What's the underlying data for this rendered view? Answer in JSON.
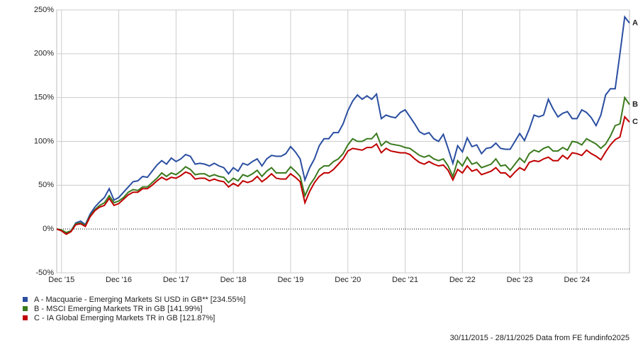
{
  "chart_data": {
    "type": "line",
    "categories": [
      null,
      "Dec '15",
      null,
      null,
      null,
      null,
      null,
      null,
      null,
      null,
      null,
      null,
      null,
      "Dec '16",
      null,
      null,
      null,
      null,
      null,
      null,
      null,
      null,
      null,
      null,
      null,
      "Dec '17",
      null,
      null,
      null,
      null,
      null,
      null,
      null,
      null,
      null,
      null,
      null,
      "Dec '18",
      null,
      null,
      null,
      null,
      null,
      null,
      null,
      null,
      null,
      null,
      null,
      "Dec '19",
      null,
      null,
      null,
      null,
      null,
      null,
      null,
      null,
      null,
      null,
      null,
      "Dec '20",
      null,
      null,
      null,
      null,
      null,
      null,
      null,
      null,
      null,
      null,
      null,
      "Dec '21",
      null,
      null,
      null,
      null,
      null,
      null,
      null,
      null,
      null,
      null,
      null,
      "Dec '22",
      null,
      null,
      null,
      null,
      null,
      null,
      null,
      null,
      null,
      null,
      null,
      "Dec '23",
      null,
      null,
      null,
      null,
      null,
      null,
      null,
      null,
      null,
      null,
      null,
      "Dec '24",
      null,
      null,
      null,
      null,
      null,
      null,
      null,
      null,
      null,
      null,
      null
    ],
    "series": [
      {
        "name": "A - Macquarie - Emerging Markets SI USD in GB** [234.55%]",
        "tag": "A",
        "color": "#2a4ea0",
        "values": [
          0,
          -1,
          -5,
          -2,
          7,
          9,
          5,
          17,
          25,
          31,
          36,
          46,
          33,
          36,
          42,
          48,
          54,
          55,
          60,
          59,
          66,
          73,
          78,
          74,
          81,
          77,
          80,
          85,
          83,
          74,
          75,
          74,
          72,
          75,
          72,
          70,
          63,
          70,
          66,
          75,
          73,
          77,
          80,
          72,
          80,
          84,
          83,
          83,
          86,
          94,
          88,
          80,
          56,
          70,
          80,
          95,
          103,
          103,
          110,
          110,
          120,
          135,
          146,
          153,
          148,
          152,
          148,
          154,
          126,
          130,
          128,
          127,
          133,
          136,
          128,
          120,
          111,
          108,
          110,
          103,
          100,
          108,
          92,
          75,
          95,
          88,
          104,
          94,
          96,
          86,
          92,
          93,
          98,
          92,
          91,
          91,
          100,
          109,
          101,
          114,
          130,
          128,
          130,
          148,
          137,
          128,
          132,
          134,
          126,
          126,
          136,
          133,
          127,
          118,
          130,
          153,
          160,
          160,
          200,
          242,
          235
        ]
      },
      {
        "name": "B - MSCI Emerging Markets TR in GB [141.99%]",
        "tag": "B",
        "color": "#3a7a1e",
        "values": [
          0,
          -1,
          -4,
          -2,
          6,
          7,
          4,
          15,
          22,
          27,
          30,
          38,
          30,
          32,
          36,
          42,
          45,
          44,
          48,
          48,
          53,
          58,
          64,
          60,
          64,
          62,
          66,
          71,
          68,
          62,
          63,
          63,
          60,
          62,
          60,
          59,
          53,
          58,
          55,
          62,
          60,
          63,
          67,
          60,
          66,
          70,
          64,
          64,
          64,
          71,
          66,
          60,
          38,
          50,
          58,
          68,
          72,
          72,
          77,
          80,
          86,
          96,
          103,
          100,
          100,
          103,
          103,
          109,
          95,
          100,
          97,
          96,
          95,
          93,
          92,
          88,
          84,
          82,
          84,
          80,
          78,
          80,
          72,
          60,
          78,
          72,
          82,
          74,
          76,
          70,
          72,
          74,
          80,
          72,
          73,
          67,
          74,
          81,
          76,
          86,
          90,
          88,
          92,
          94,
          89,
          89,
          93,
          90,
          100,
          99,
          96,
          103,
          100,
          97,
          92,
          97,
          106,
          118,
          120,
          150,
          142
        ]
      },
      {
        "name": "C - IA Global Emerging Markets TR in GB [121.87%]",
        "tag": "C",
        "color": "#c00000",
        "values": [
          0,
          -2,
          -6,
          -3,
          5,
          6,
          3,
          14,
          21,
          25,
          27,
          35,
          27,
          29,
          34,
          39,
          42,
          42,
          46,
          46,
          50,
          55,
          59,
          56,
          59,
          58,
          61,
          65,
          63,
          57,
          58,
          58,
          55,
          57,
          55,
          54,
          48,
          52,
          49,
          55,
          53,
          55,
          60,
          54,
          58,
          63,
          58,
          57,
          57,
          63,
          59,
          54,
          30,
          43,
          53,
          60,
          64,
          64,
          68,
          74,
          80,
          89,
          92,
          91,
          90,
          93,
          93,
          97,
          87,
          92,
          89,
          88,
          87,
          87,
          85,
          80,
          76,
          74,
          77,
          74,
          72,
          73,
          67,
          56,
          68,
          64,
          72,
          66,
          68,
          62,
          64,
          66,
          70,
          64,
          64,
          59,
          65,
          70,
          67,
          76,
          78,
          77,
          80,
          82,
          78,
          78,
          84,
          80,
          87,
          86,
          84,
          90,
          86,
          83,
          79,
          88,
          96,
          102,
          105,
          128,
          122
        ]
      }
    ],
    "ylim": [
      -50,
      250
    ],
    "yticks": [
      {
        "value": -50,
        "label": "-50%"
      },
      {
        "value": 0,
        "label": "0%"
      },
      {
        "value": 50,
        "label": "50%"
      },
      {
        "value": 100,
        "label": "100%"
      },
      {
        "value": 150,
        "label": "150%"
      },
      {
        "value": 200,
        "label": "200%"
      },
      {
        "value": 250,
        "label": "250%"
      }
    ],
    "grid": true,
    "footnote": "30/11/2015 - 28/11/2025 Data from FE fundinfo2025"
  }
}
